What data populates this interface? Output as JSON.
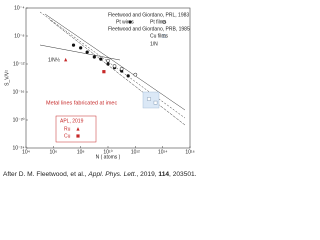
{
  "chart_data": {
    "type": "scatter",
    "x_label": "N ( atoms )",
    "y_label": "S_V/V²",
    "xlog": true,
    "ylog": true,
    "xlim": [
      10000,
      1e+16
    ],
    "ylim": [
      1e-24,
      0.0001
    ],
    "xticks": [
      {
        "value": 10000,
        "label": "10⁴"
      },
      {
        "value": 1000000,
        "label": "10⁶"
      },
      {
        "value": 100000000,
        "label": "10⁸"
      },
      {
        "value": 10000000000,
        "label": "10¹⁰"
      },
      {
        "value": 1000000000000,
        "label": "10¹²"
      },
      {
        "value": 100000000000000,
        "label": "10¹⁴"
      },
      {
        "value": 1e+16,
        "label": "10¹⁶"
      }
    ],
    "yticks": [
      {
        "value": 1e-24,
        "label": "10⁻²⁴"
      },
      {
        "value": 1e-20,
        "label": "10⁻²⁰"
      },
      {
        "value": 1e-16,
        "label": "10⁻¹⁶"
      },
      {
        "value": 1e-12,
        "label": "10⁻¹²"
      },
      {
        "value": 1e-08,
        "label": "10⁻⁸"
      },
      {
        "value": 0.0001,
        "label": "10⁻⁴"
      }
    ],
    "annotations": [
      "Fleetwood and Giordano, PRL, 1983",
      "Fleetwood and Giordano, PRB, 1985",
      "Metal lines fabricated at imec",
      "APL, 2019",
      "1/N",
      "1/N½"
    ],
    "series": [
      {
        "name": "Pt wires",
        "color": "#111111",
        "marker": "circle",
        "x": [
          30000000,
          100000000,
          300000000,
          1000000000,
          3000000000,
          10000000000,
          30000000000,
          100000000000,
          300000000000
        ],
        "y": [
          5e-10,
          2e-10,
          5e-11,
          1e-11,
          5e-12,
          1e-12,
          3e-13,
          1e-13,
          2e-14
        ]
      },
      {
        "name": "Pt films",
        "color": "#111111",
        "marker": "circle-open",
        "x": [
          10000000000,
          30000000000,
          100000000000,
          1000000000000
        ],
        "y": [
          3e-12,
          5e-13,
          2e-13,
          3e-14
        ]
      },
      {
        "name": "Cu films",
        "color": "#8aa0b8",
        "marker": "square-open",
        "x": [
          10000000000000,
          30000000000000
        ],
        "y": [
          1e-17,
          3e-18
        ]
      },
      {
        "name": "Ru",
        "color": "#c62828",
        "marker": "triangle",
        "x": [
          8000000
        ],
        "y": [
          4e-12
        ]
      },
      {
        "name": "Cu",
        "color": "#c62828",
        "marker": "square",
        "x": [
          5000000000
        ],
        "y": [
          8e-14
        ]
      }
    ]
  }
}
